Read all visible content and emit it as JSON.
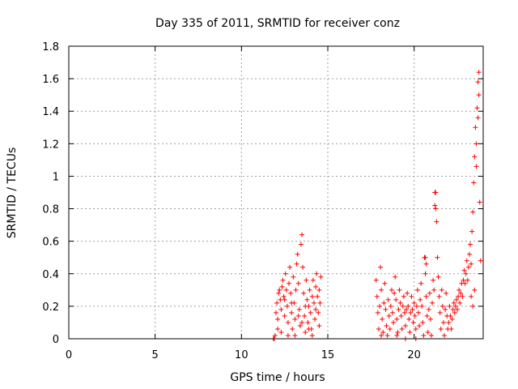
{
  "chart_data": {
    "type": "scatter",
    "title": "Day 335 of 2011, SRMTID for receiver conz",
    "xlabel": "GPS time / hours",
    "ylabel": "SRMTID / TECUs",
    "xlim": [
      0,
      24
    ],
    "ylim": [
      0,
      1.8
    ],
    "xticks": [
      0,
      5,
      10,
      15,
      20
    ],
    "yticks": [
      0,
      0.2,
      0.4,
      0.6,
      0.8,
      1,
      1.2,
      1.4,
      1.6,
      1.8
    ],
    "ytick_labels": [
      "0",
      "0.2",
      "0.4",
      "0.6",
      "0.8",
      "1",
      "1.2",
      "1.4",
      "1.6",
      "1.8"
    ],
    "grid": true,
    "marker": "+",
    "color": "#ff0000",
    "series": [
      {
        "points": [
          [
            11.85,
            0.0
          ],
          [
            11.9,
            0.0
          ],
          [
            11.95,
            0.02
          ],
          [
            12.0,
            0.16
          ],
          [
            12.05,
            0.22
          ],
          [
            12.1,
            0.12
          ],
          [
            12.15,
            0.28
          ],
          [
            12.2,
            0.3
          ],
          [
            12.25,
            0.24
          ],
          [
            12.3,
            0.18
          ],
          [
            12.35,
            0.32
          ],
          [
            12.4,
            0.36
          ],
          [
            12.45,
            0.26
          ],
          [
            12.5,
            0.14
          ],
          [
            12.55,
            0.4
          ],
          [
            12.6,
            0.3
          ],
          [
            12.65,
            0.2
          ],
          [
            12.7,
            0.1
          ],
          [
            12.75,
            0.34
          ],
          [
            12.8,
            0.44
          ],
          [
            12.85,
            0.28
          ],
          [
            12.9,
            0.16
          ],
          [
            12.95,
            0.06
          ],
          [
            13.0,
            0.38
          ],
          [
            13.05,
            0.22
          ],
          [
            13.1,
            0.12
          ],
          [
            13.15,
            0.3
          ],
          [
            13.2,
            0.46
          ],
          [
            13.25,
            0.52
          ],
          [
            13.3,
            0.34
          ],
          [
            13.35,
            0.18
          ],
          [
            13.4,
            0.08
          ],
          [
            13.45,
            0.58
          ],
          [
            13.5,
            0.64
          ],
          [
            13.55,
            0.44
          ],
          [
            13.6,
            0.28
          ],
          [
            13.65,
            0.14
          ],
          [
            13.7,
            0.04
          ],
          [
            13.75,
            0.36
          ],
          [
            13.8,
            0.24
          ],
          [
            13.85,
            0.1
          ],
          [
            13.9,
            0.2
          ],
          [
            13.95,
            0.3
          ],
          [
            14.0,
            0.16
          ],
          [
            14.05,
            0.06
          ],
          [
            14.1,
            0.26
          ],
          [
            14.15,
            0.36
          ],
          [
            14.2,
            0.22
          ],
          [
            14.25,
            0.12
          ],
          [
            14.3,
            0.32
          ],
          [
            14.35,
            0.4
          ],
          [
            14.4,
            0.26
          ],
          [
            14.45,
            0.16
          ],
          [
            14.5,
            0.08
          ],
          [
            14.55,
            0.22
          ],
          [
            14.6,
            0.38
          ],
          [
            12.1,
            0.06
          ],
          [
            12.3,
            0.04
          ],
          [
            12.5,
            0.24
          ],
          [
            12.7,
            0.02
          ],
          [
            12.9,
            0.22
          ],
          [
            13.1,
            0.02
          ],
          [
            13.3,
            0.14
          ],
          [
            13.5,
            0.1
          ],
          [
            13.7,
            0.2
          ],
          [
            13.9,
            0.06
          ],
          [
            14.1,
            0.02
          ],
          [
            14.3,
            0.18
          ],
          [
            14.5,
            0.3
          ],
          [
            17.8,
            0.36
          ],
          [
            17.85,
            0.26
          ],
          [
            17.9,
            0.16
          ],
          [
            17.95,
            0.06
          ],
          [
            18.0,
            0.2
          ],
          [
            18.05,
            0.44
          ],
          [
            18.1,
            0.3
          ],
          [
            18.15,
            0.12
          ],
          [
            18.2,
            0.04
          ],
          [
            18.25,
            0.22
          ],
          [
            18.3,
            0.34
          ],
          [
            18.35,
            0.18
          ],
          [
            18.4,
            0.08
          ],
          [
            18.45,
            0.02
          ],
          [
            18.5,
            0.24
          ],
          [
            18.55,
            0.14
          ],
          [
            18.6,
            0.06
          ],
          [
            18.65,
            0.2
          ],
          [
            18.7,
            0.3
          ],
          [
            18.75,
            0.16
          ],
          [
            18.8,
            0.1
          ],
          [
            18.85,
            0.28
          ],
          [
            18.9,
            0.38
          ],
          [
            18.95,
            0.24
          ],
          [
            19.0,
            0.12
          ],
          [
            19.05,
            0.04
          ],
          [
            19.1,
            0.18
          ],
          [
            19.15,
            0.3
          ],
          [
            19.2,
            0.22
          ],
          [
            19.25,
            0.14
          ],
          [
            19.3,
            0.06
          ],
          [
            19.35,
            0.2
          ],
          [
            19.4,
            0.26
          ],
          [
            19.45,
            0.16
          ],
          [
            19.5,
            0.08
          ],
          [
            19.55,
            0.18
          ],
          [
            19.6,
            0.28
          ],
          [
            19.65,
            0.2
          ],
          [
            19.7,
            0.12
          ],
          [
            19.75,
            0.04
          ],
          [
            19.8,
            0.16
          ],
          [
            19.85,
            0.26
          ],
          [
            19.9,
            0.18
          ],
          [
            19.95,
            0.1
          ],
          [
            20.0,
            0.22
          ],
          [
            20.05,
            0.14
          ],
          [
            20.1,
            0.06
          ],
          [
            20.15,
            0.2
          ],
          [
            20.2,
            0.3
          ],
          [
            20.25,
            0.16
          ],
          [
            20.3,
            0.08
          ],
          [
            20.35,
            0.24
          ],
          [
            20.4,
            0.34
          ],
          [
            20.45,
            0.2
          ],
          [
            20.5,
            0.1
          ],
          [
            20.55,
            0.02
          ],
          [
            20.6,
            0.5
          ],
          [
            20.65,
            0.4
          ],
          [
            20.7,
            0.26
          ],
          [
            20.75,
            0.14
          ],
          [
            20.8,
            0.04
          ],
          [
            20.85,
            0.18
          ],
          [
            20.9,
            0.28
          ],
          [
            20.95,
            0.12
          ],
          [
            21.0,
            0.02
          ],
          [
            21.05,
            0.22
          ],
          [
            21.1,
            0.36
          ],
          [
            21.15,
            0.3
          ],
          [
            21.2,
            0.82
          ],
          [
            21.25,
            0.9
          ],
          [
            21.3,
            0.72
          ],
          [
            21.35,
            0.5
          ],
          [
            21.4,
            0.38
          ],
          [
            21.45,
            0.26
          ],
          [
            21.5,
            0.16
          ],
          [
            21.55,
            0.06
          ],
          [
            21.6,
            0.3
          ],
          [
            21.65,
            0.2
          ],
          [
            21.7,
            0.1
          ],
          [
            21.75,
            0.02
          ],
          [
            21.8,
            0.18
          ],
          [
            21.85,
            0.28
          ],
          [
            21.9,
            0.14
          ],
          [
            21.95,
            0.06
          ],
          [
            22.0,
            0.1
          ],
          [
            22.05,
            0.2
          ],
          [
            22.1,
            0.14
          ],
          [
            22.15,
            0.06
          ],
          [
            22.2,
            0.12
          ],
          [
            22.25,
            0.18
          ],
          [
            22.3,
            0.22
          ],
          [
            22.35,
            0.16
          ],
          [
            22.4,
            0.2
          ],
          [
            22.45,
            0.24
          ],
          [
            22.5,
            0.18
          ],
          [
            22.55,
            0.26
          ],
          [
            22.6,
            0.3
          ],
          [
            22.65,
            0.22
          ],
          [
            22.7,
            0.28
          ],
          [
            22.75,
            0.34
          ],
          [
            22.8,
            0.26
          ],
          [
            22.85,
            0.36
          ],
          [
            22.9,
            0.42
          ],
          [
            22.95,
            0.34
          ],
          [
            23.0,
            0.4
          ],
          [
            23.05,
            0.48
          ],
          [
            23.1,
            0.36
          ],
          [
            23.15,
            0.44
          ],
          [
            23.2,
            0.52
          ],
          [
            23.25,
            0.58
          ],
          [
            23.3,
            0.46
          ],
          [
            23.35,
            0.66
          ],
          [
            23.4,
            0.78
          ],
          [
            23.45,
            0.96
          ],
          [
            23.5,
            1.12
          ],
          [
            23.55,
            1.3
          ],
          [
            23.6,
            1.06
          ],
          [
            23.65,
            1.42
          ],
          [
            23.7,
            1.58
          ],
          [
            23.75,
            1.64
          ],
          [
            23.8,
            0.84
          ],
          [
            23.85,
            0.48
          ],
          [
            23.5,
            0.3
          ],
          [
            23.4,
            0.2
          ],
          [
            23.3,
            0.26
          ],
          [
            23.6,
            1.2
          ],
          [
            23.7,
            1.36
          ],
          [
            23.75,
            1.5
          ],
          [
            20.65,
            0.5
          ],
          [
            20.7,
            0.46
          ],
          [
            21.25,
            0.8
          ],
          [
            21.2,
            0.9
          ],
          [
            18.1,
            0.02
          ],
          [
            19.0,
            0.02
          ],
          [
            19.5,
            0.0
          ],
          [
            20.1,
            0.0
          ]
        ]
      }
    ]
  }
}
